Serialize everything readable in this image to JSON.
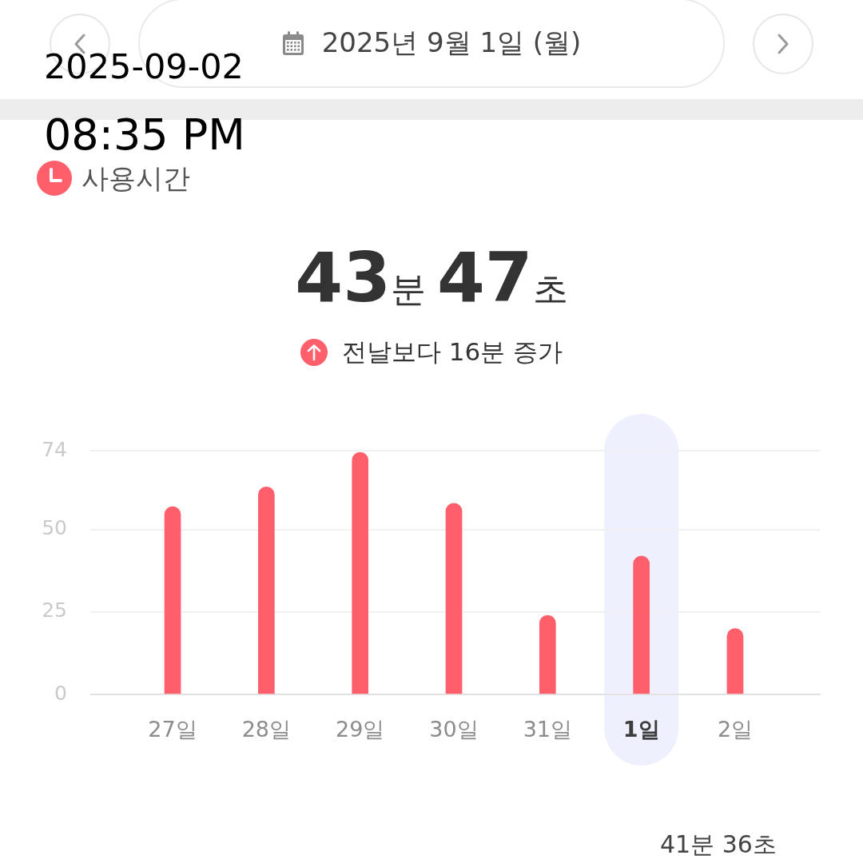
{
  "chart_data": {
    "type": "bar",
    "title": "사용시간",
    "subtitle": "43분 47초",
    "annotations": [
      "2025년 9월 1일 (월)",
      "전날보다 16분 증가",
      "2025-09-02",
      "08:35 PM",
      "41분 36초"
    ],
    "categories": [
      "27일",
      "28일",
      "29일",
      "30일",
      "31일",
      "1일",
      "2일"
    ],
    "values": [
      57,
      63,
      73.5,
      58,
      24,
      42,
      20
    ],
    "color": "#fe5f6b",
    "ylim": [
      0,
      74
    ],
    "yticks": [
      0,
      25,
      50,
      74
    ],
    "grid": "y",
    "bands": [
      {
        "axis": "x",
        "from": "1일",
        "to": "1일",
        "color": "#eef1fd"
      }
    ]
  }
}
